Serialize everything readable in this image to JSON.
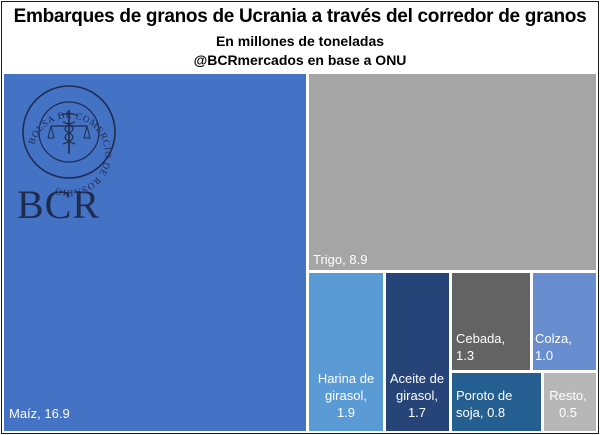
{
  "header": {
    "title": "Embarques de granos de Ucrania a través del corredor de granos",
    "subtitle": "En millones de toneladas",
    "source": "@BCRmercados en base a ONU"
  },
  "watermark": {
    "seal_text": "BOLSA DE COMERCIO DE ROSARIO",
    "logo_text": "BCR"
  },
  "colors": {
    "maiz": "#4472C4",
    "trigo": "#A5A5A5",
    "harina": "#5B9BD5",
    "aceite": "#264478",
    "cebada": "#636363",
    "poroto": "#255E91",
    "colza": "#698ED0",
    "resto": "#B7B7B7",
    "logo": "#1F2C4F"
  },
  "chart_data": {
    "type": "treemap",
    "title": "Embarques de granos de Ucrania a través del corredor de granos",
    "unit": "millones de toneladas",
    "items": [
      {
        "id": "maiz",
        "lines": [
          "Maíz, 16.9"
        ],
        "name": "Maíz",
        "value": 16.9
      },
      {
        "id": "trigo",
        "lines": [
          "Trigo, 8.9"
        ],
        "name": "Trigo",
        "value": 8.9
      },
      {
        "id": "harina",
        "lines": [
          "Harina de",
          "girasol,",
          "1.9"
        ],
        "name": "Harina de girasol",
        "value": 1.9
      },
      {
        "id": "aceite",
        "lines": [
          "Aceite de",
          "girasol,",
          "1.7"
        ],
        "name": "Aceite de girasol",
        "value": 1.7
      },
      {
        "id": "cebada",
        "lines": [
          "Cebada,",
          "1.3"
        ],
        "name": "Cebada",
        "value": 1.3
      },
      {
        "id": "colza",
        "lines": [
          "Colza,",
          "1.0"
        ],
        "name": "Colza",
        "value": 1.0
      },
      {
        "id": "poroto",
        "lines": [
          "Poroto de",
          "soja, 0.8"
        ],
        "name": "Poroto de soja",
        "value": 0.8
      },
      {
        "id": "resto",
        "lines": [
          "Resto,",
          "0.5"
        ],
        "name": "Resto",
        "value": 0.5
      }
    ]
  }
}
